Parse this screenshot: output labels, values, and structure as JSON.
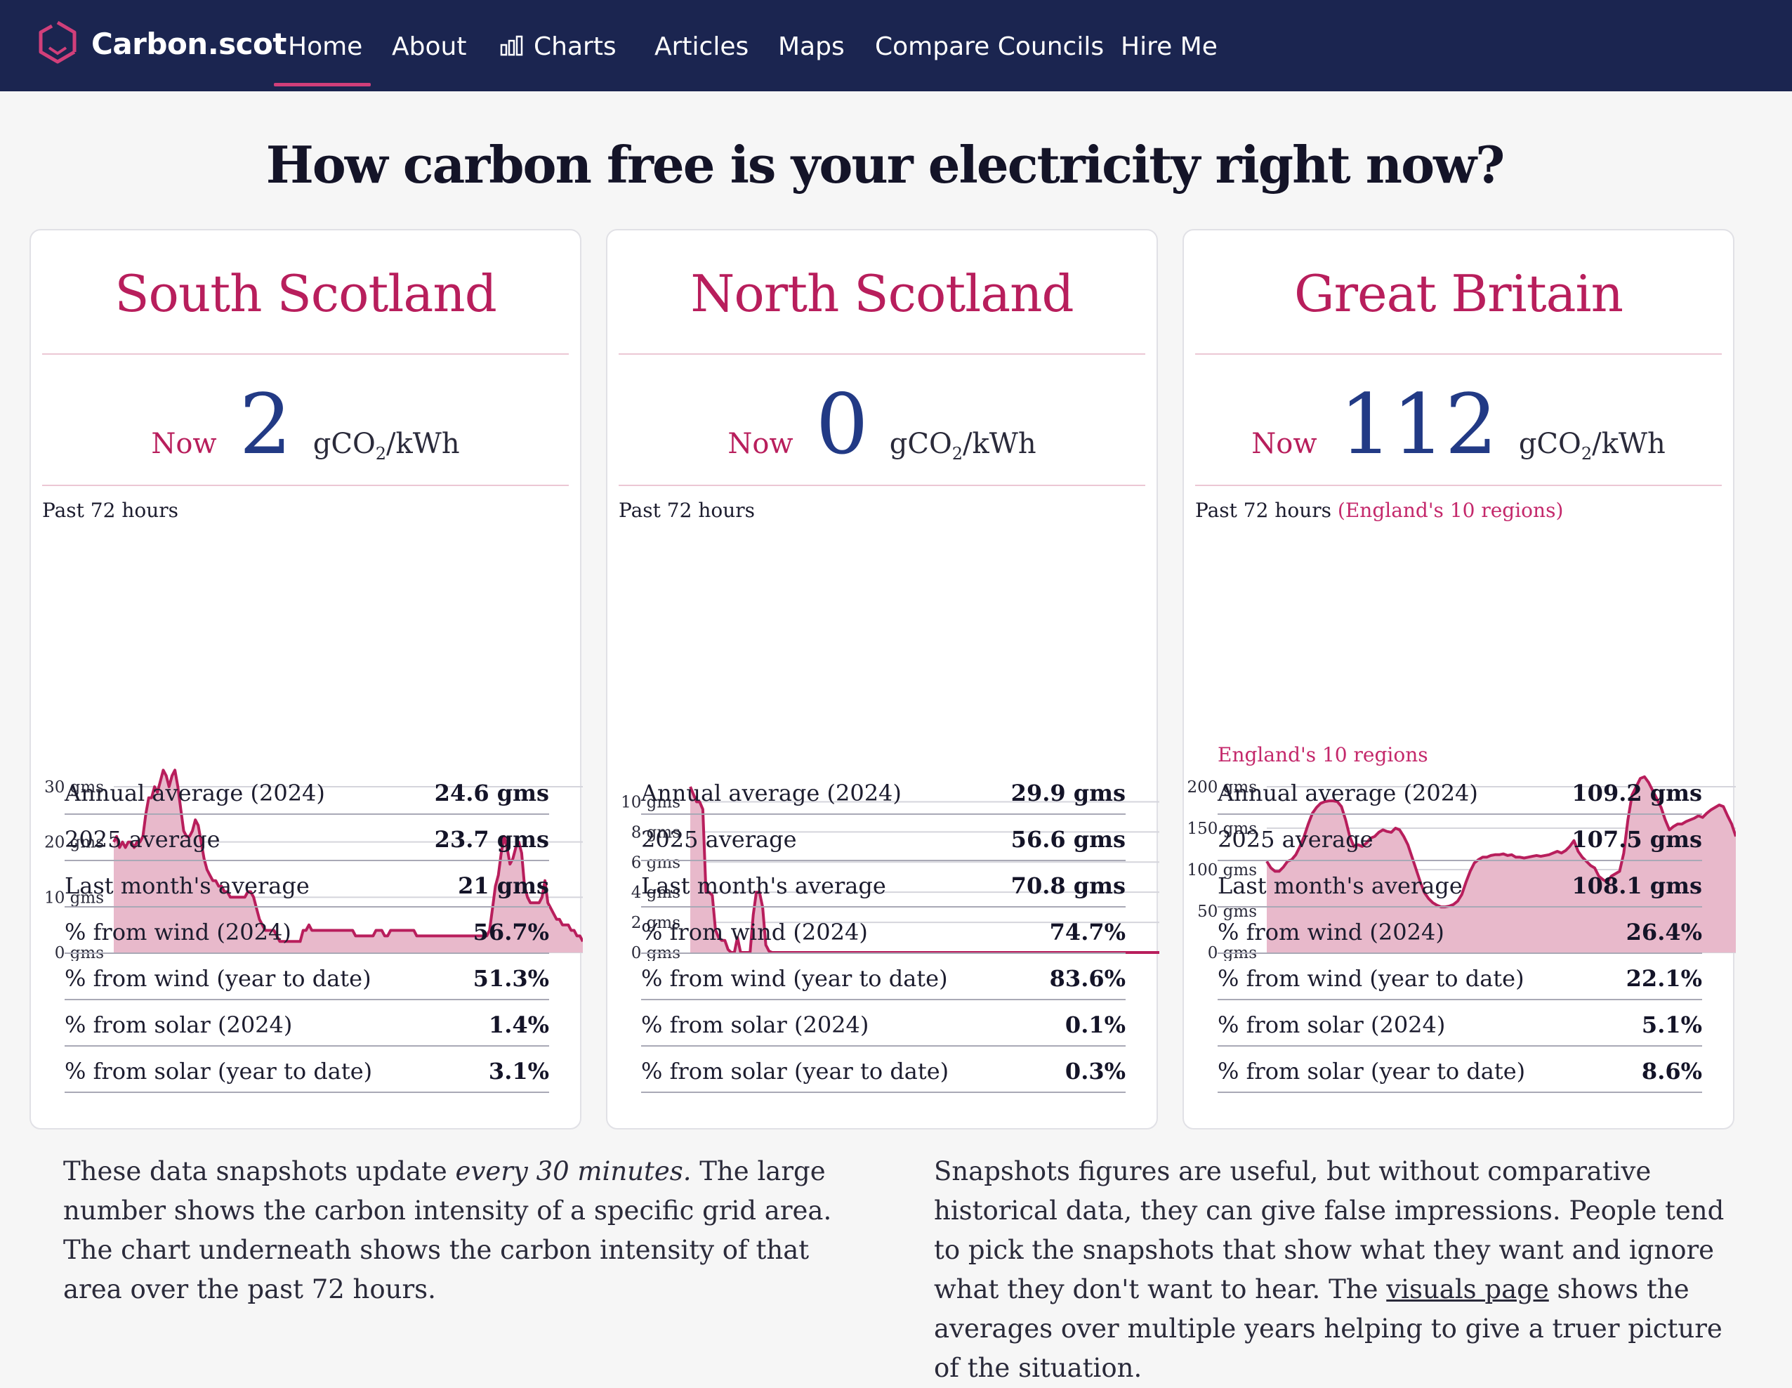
{
  "nav": {
    "brand": "Carbon.scot",
    "items": [
      {
        "label": "Home",
        "active": true
      },
      {
        "label": "About"
      },
      {
        "label": "Charts",
        "icon": "bar-chart-icon"
      },
      {
        "label": "Articles"
      },
      {
        "label": "Maps"
      },
      {
        "label": "Compare Councils"
      },
      {
        "label": "Hire Me"
      }
    ]
  },
  "title": "How carbon free is your electricity right now?",
  "now_label": "Now",
  "unit_prefix": "gCO",
  "unit_sub": "2",
  "unit_suffix": "/kWh",
  "past_label": "Past 72 hours",
  "cards": [
    {
      "name": "South Scotland",
      "now": "2",
      "past_note": "",
      "stats": [
        {
          "label": "Annual average (2024)",
          "value": "24.6 gms"
        },
        {
          "label": "2025 average",
          "value": "23.7 gms"
        },
        {
          "label": "Last month's average",
          "value": "21 gms"
        },
        {
          "label": "% from wind (2024)",
          "value": "56.7%"
        },
        {
          "label": "% from wind (year to date)",
          "value": "51.3%"
        },
        {
          "label": "% from solar (2024)",
          "value": "1.4%"
        },
        {
          "label": "% from solar (year to date)",
          "value": "3.1%"
        }
      ]
    },
    {
      "name": "North Scotland",
      "now": "0",
      "past_note": "",
      "stats": [
        {
          "label": "Annual average (2024)",
          "value": "29.9 gms"
        },
        {
          "label": "2025 average",
          "value": "56.6 gms"
        },
        {
          "label": "Last month's average",
          "value": "70.8 gms"
        },
        {
          "label": "% from wind (2024)",
          "value": "74.7%"
        },
        {
          "label": "% from wind (year to date)",
          "value": "83.6%"
        },
        {
          "label": "% from solar (2024)",
          "value": "0.1%"
        },
        {
          "label": "% from solar (year to date)",
          "value": "0.3%"
        }
      ]
    },
    {
      "name": "Great Britain",
      "now": "112",
      "past_note": "(England's 10 regions)",
      "region_note": "England's 10 regions",
      "stats": [
        {
          "label": "Annual average (2024)",
          "value": "109.2 gms"
        },
        {
          "label": "2025 average",
          "value": "107.5 gms"
        },
        {
          "label": "Last month's average",
          "value": "108.1 gms"
        },
        {
          "label": "% from wind (2024)",
          "value": "26.4%"
        },
        {
          "label": "% from wind (year to date)",
          "value": "22.1%"
        },
        {
          "label": "% from solar (2024)",
          "value": "5.1%"
        },
        {
          "label": "% from solar (year to date)",
          "value": "8.6%"
        }
      ]
    }
  ],
  "chart_data": [
    {
      "type": "area",
      "ylim": [
        0,
        30
      ],
      "yticks": [
        0,
        10,
        20,
        30
      ],
      "ytick_labels": [
        "0 gms",
        "10 gms",
        "20 gms",
        "30 gms"
      ],
      "color": "#b81e5c",
      "fill": "#e8b9cb",
      "values": [
        20,
        21,
        19,
        20,
        19,
        20,
        20,
        19,
        20,
        20,
        21,
        25,
        28,
        28,
        30,
        29,
        31,
        33,
        32,
        30,
        32,
        33,
        30,
        26,
        22,
        21,
        21,
        22,
        24,
        23,
        20,
        17,
        15,
        14,
        13,
        13,
        12,
        12,
        11,
        11,
        10,
        10,
        10,
        10,
        10,
        10,
        11,
        11,
        10,
        8,
        6,
        5,
        4,
        4,
        4,
        4,
        3,
        2,
        2,
        2,
        2,
        2,
        2,
        2,
        2,
        4,
        4,
        5,
        4,
        4,
        4,
        4,
        4,
        4,
        4,
        4,
        4,
        4,
        4,
        4,
        4,
        4,
        4,
        3,
        3,
        3,
        3,
        3,
        3,
        3,
        4,
        4,
        4,
        3,
        3,
        4,
        4,
        4,
        4,
        4,
        4,
        4,
        4,
        4,
        3,
        3,
        3,
        3,
        3,
        3,
        3,
        3,
        3,
        3,
        3,
        3,
        3,
        3,
        3,
        3,
        3,
        3,
        3,
        3,
        3,
        3,
        3,
        3,
        3,
        4,
        8,
        12,
        14,
        18,
        21,
        19,
        16,
        17,
        19,
        20,
        18,
        12,
        10,
        9,
        9,
        9,
        9,
        10,
        13,
        9,
        8,
        7,
        6,
        6,
        5,
        5,
        5,
        4,
        4,
        3,
        3,
        2
      ]
    },
    {
      "type": "area",
      "ylim": [
        0,
        11
      ],
      "yticks": [
        0,
        2,
        4,
        6,
        8,
        10
      ],
      "ytick_labels": [
        "0 gms",
        "2 gms",
        "4 gms",
        "6 gms",
        "8 gms",
        "10 gms"
      ],
      "color": "#b81e5c",
      "fill": "#e8b9cb",
      "values": [
        11,
        10.5,
        10,
        10,
        9.5,
        4,
        4,
        3.8,
        1.5,
        1,
        0.8,
        0.8,
        0.2,
        0,
        0,
        1,
        0,
        0,
        0,
        0,
        2.5,
        4,
        4,
        3,
        0.5,
        0.1,
        0,
        0,
        0,
        0,
        0,
        0,
        0,
        0,
        0,
        0,
        0,
        0,
        0,
        0,
        0,
        0,
        0,
        0,
        0,
        0,
        0,
        0,
        0,
        0,
        0,
        0,
        0,
        0,
        0,
        0,
        0,
        0,
        0,
        0,
        0,
        0,
        0,
        0,
        0,
        0,
        0,
        0,
        0,
        0,
        0,
        0,
        0,
        0,
        0,
        0,
        0,
        0,
        0,
        0,
        0,
        0,
        0,
        0,
        0,
        0,
        0,
        0,
        0,
        0,
        0,
        0,
        0,
        0,
        0,
        0,
        0,
        0,
        0,
        0,
        0,
        0,
        0,
        0,
        0,
        0,
        0,
        0,
        0,
        0,
        0,
        0,
        0,
        0,
        0,
        0,
        0,
        0,
        0,
        0,
        0,
        0,
        0,
        0,
        0,
        0,
        0,
        0,
        0,
        0,
        0,
        0,
        0,
        0,
        0,
        0,
        0,
        0,
        0,
        0,
        0,
        0,
        0,
        0,
        0,
        0,
        0,
        0,
        0,
        0
      ]
    },
    {
      "type": "area",
      "ylim": [
        0,
        200
      ],
      "yticks": [
        0,
        50,
        100,
        150,
        200
      ],
      "ytick_labels": [
        "0 gms",
        "50 gms",
        "100 gms",
        "150 gms",
        "200 gms"
      ],
      "color": "#b81e5c",
      "fill": "#e8b9cb",
      "values": [
        110,
        102,
        98,
        98,
        103,
        110,
        112,
        118,
        128,
        140,
        155,
        168,
        175,
        180,
        182,
        183,
        183,
        182,
        176,
        160,
        140,
        128,
        130,
        128,
        132,
        138,
        140,
        145,
        148,
        146,
        145,
        150,
        148,
        140,
        130,
        115,
        100,
        85,
        72,
        65,
        60,
        57,
        55,
        55,
        56,
        58,
        62,
        70,
        85,
        98,
        108,
        112,
        115,
        115,
        117,
        118,
        118,
        119,
        117,
        118,
        115,
        115,
        114,
        115,
        116,
        117,
        116,
        117,
        118,
        120,
        122,
        120,
        123,
        128,
        135,
        122,
        115,
        110,
        105,
        102,
        92,
        88,
        85,
        92,
        95,
        98,
        120,
        160,
        190,
        200,
        210,
        212,
        205,
        195,
        185,
        175,
        160,
        148,
        152,
        155,
        155,
        158,
        160,
        162,
        165,
        163,
        168,
        172,
        175,
        178,
        176,
        165,
        155,
        140
      ]
    }
  ],
  "paragraphs": {
    "left_prefix": "These data snapshots update ",
    "left_em": "every 30 minutes.",
    "left_suffix": " The large number shows the carbon intensity of a specific grid area. The chart underneath shows the carbon intensity of that area over the past 72 hours.",
    "right_prefix": "Snapshots figures are useful, but without comparative historical data, they can give false impressions. People tend to pick the snapshots that show what they want and ignore what they don't want to hear. The ",
    "right_link": "visuals page",
    "right_suffix": " shows the averages over multiple years helping to give a truer picture of the situation."
  }
}
